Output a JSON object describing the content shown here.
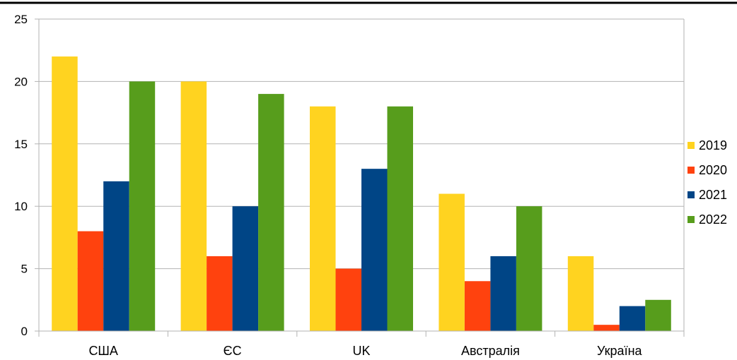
{
  "chart_data": {
    "type": "bar",
    "title": "",
    "xlabel": "",
    "ylabel": "",
    "categories": [
      "США",
      "ЄС",
      "UK",
      "Австралія",
      "Україна"
    ],
    "series": [
      {
        "name": "2019",
        "color": "#ffd320",
        "values": [
          22,
          20,
          18,
          11,
          6
        ]
      },
      {
        "name": "2020",
        "color": "#ff420e",
        "values": [
          8,
          6,
          5,
          4,
          0.5
        ]
      },
      {
        "name": "2021",
        "color": "#004586",
        "values": [
          12,
          10,
          13,
          6,
          2
        ]
      },
      {
        "name": "2022",
        "color": "#579d1c",
        "values": [
          20,
          19,
          18,
          10,
          2.5
        ]
      }
    ],
    "ylim": [
      0,
      25
    ],
    "yticks": [
      0,
      5,
      10,
      15,
      20,
      25
    ],
    "grid": true,
    "legend_position": "right"
  }
}
